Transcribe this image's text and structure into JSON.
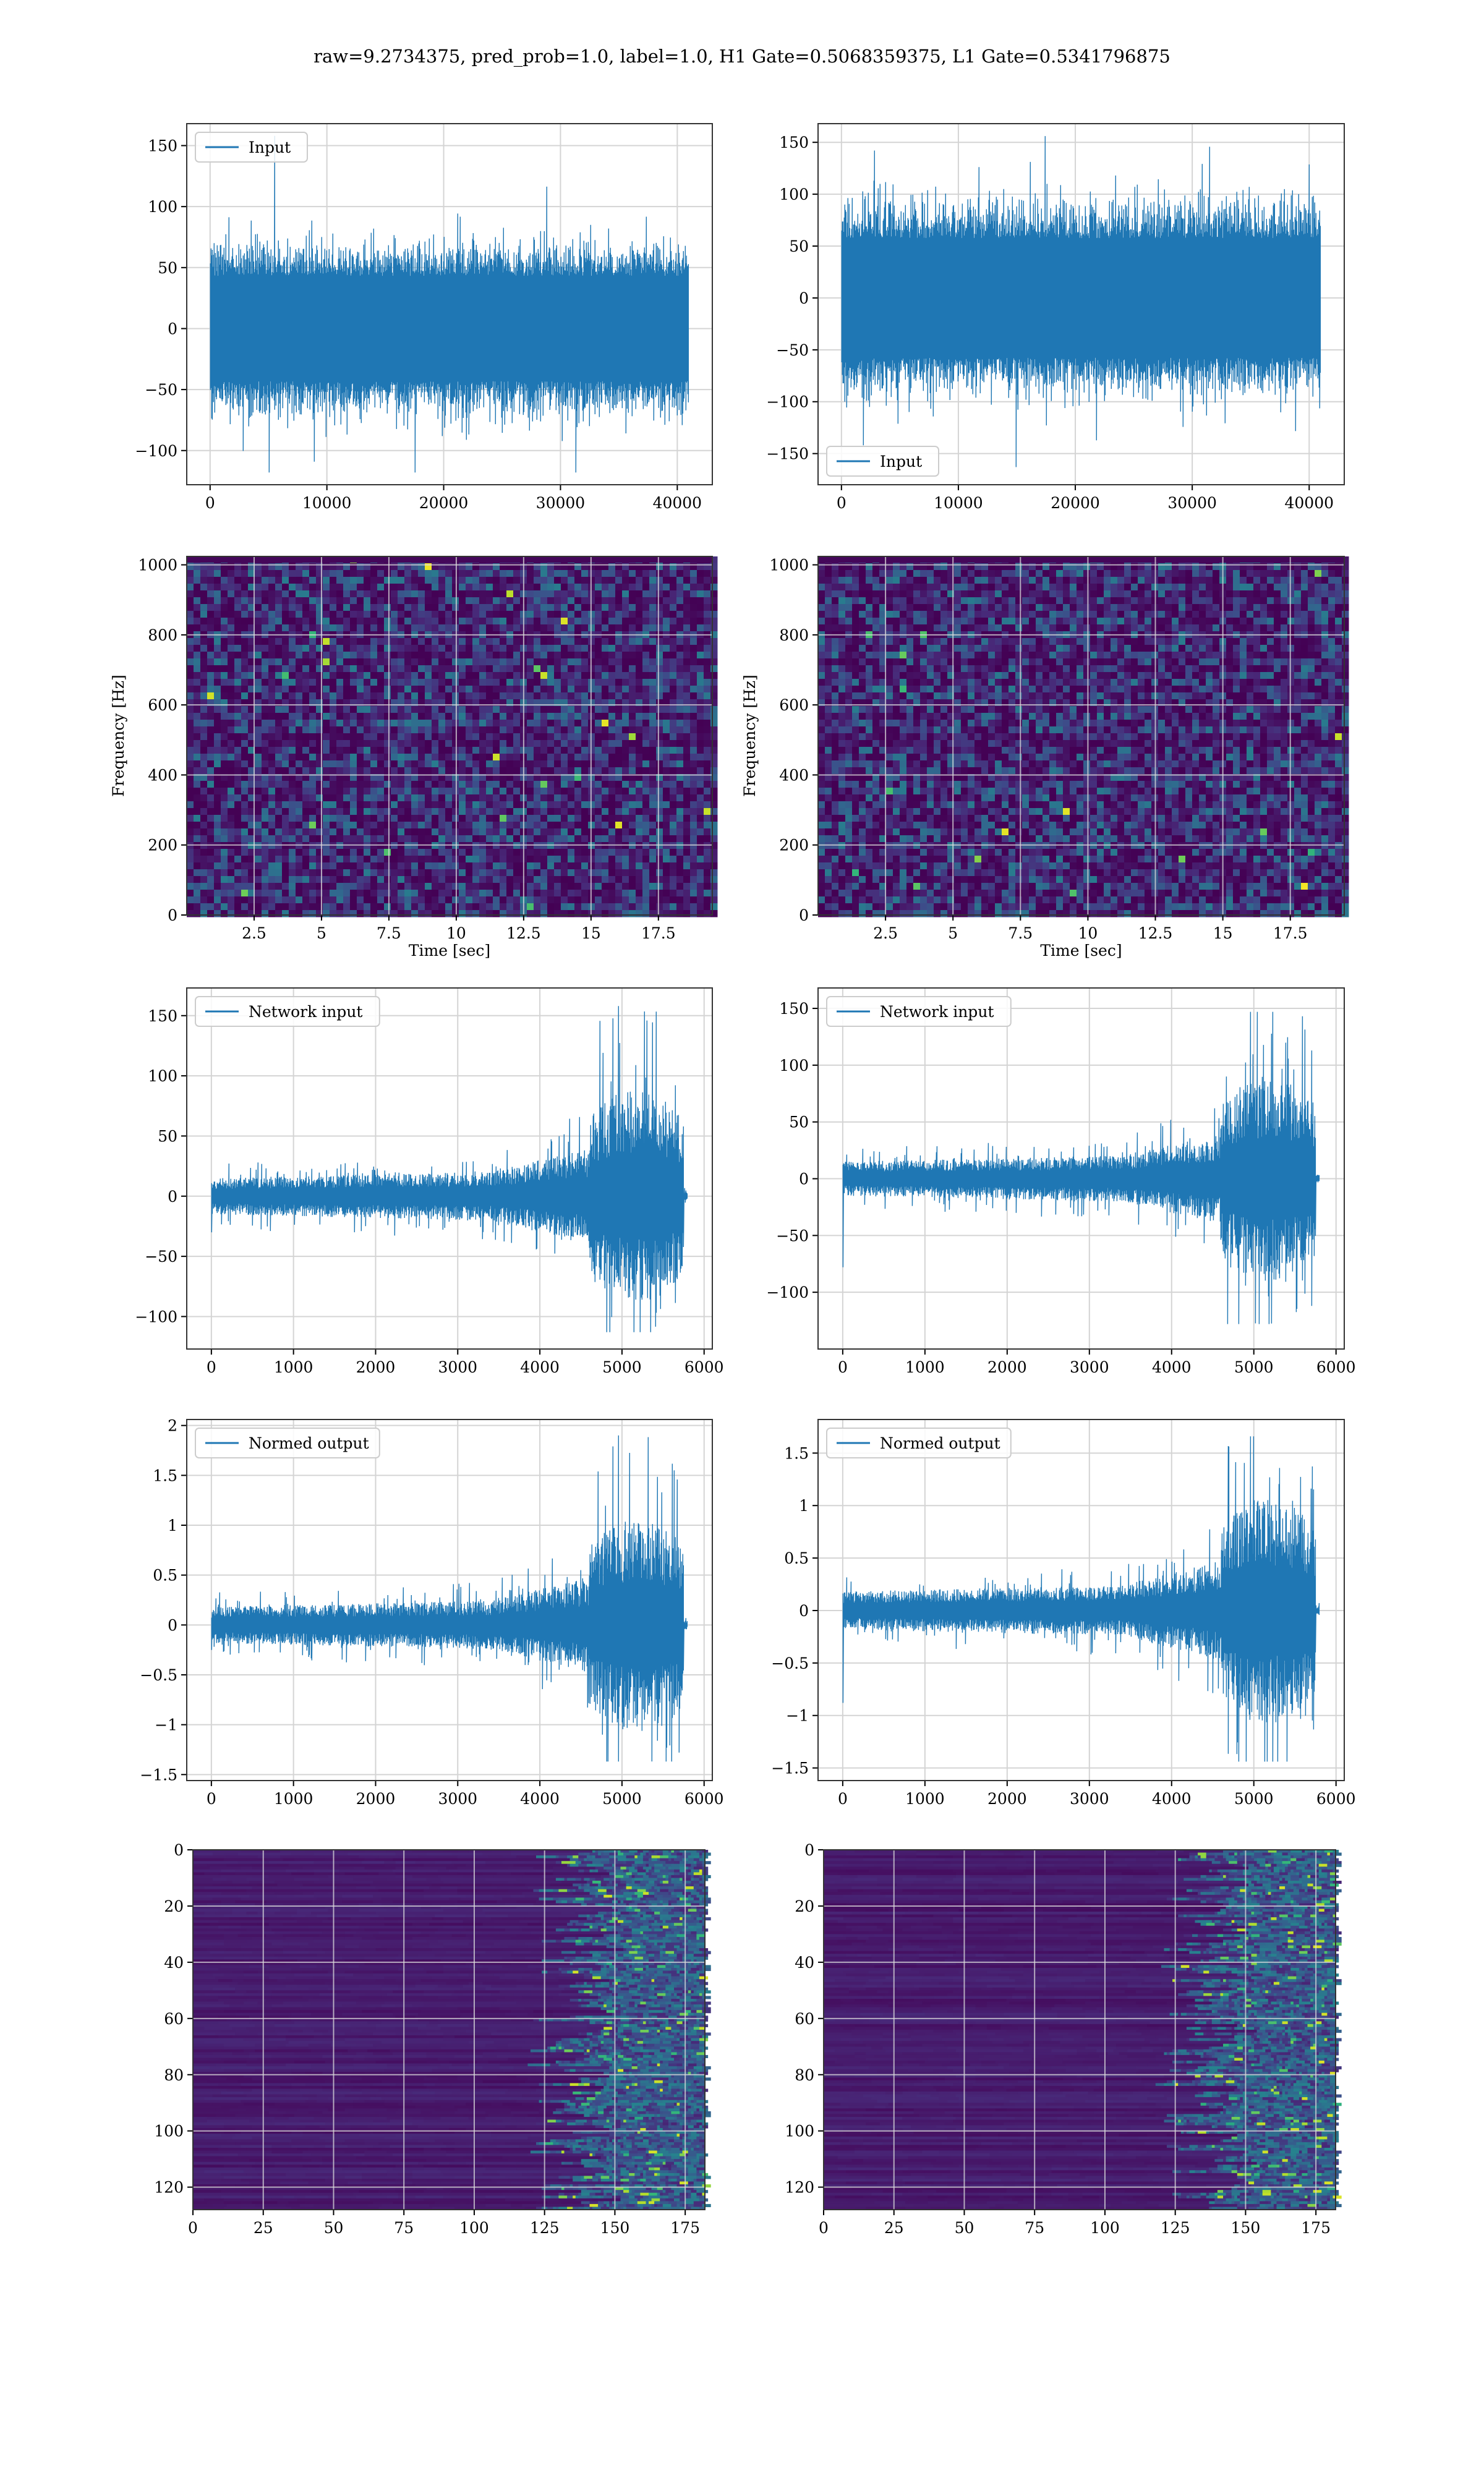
{
  "suptitle": "raw=9.2734375, pred_prob=1.0, label=1.0, H1 Gate=0.5068359375, L1 Gate=0.5341796875",
  "colors": {
    "line": "#1f77b4",
    "grid": "#d4d4d4",
    "viridis_low": "#440154",
    "viridis_high": "#fde725"
  },
  "chart_data": [
    {
      "id": "input-h1",
      "type": "line",
      "legend": "Input",
      "legend_loc": "upper left",
      "xlim": [
        -2000,
        43000
      ],
      "ylim": [
        -128,
        168
      ],
      "xticks": [
        0,
        10000,
        20000,
        30000,
        40000
      ],
      "yticks": [
        -100,
        -50,
        0,
        50,
        100,
        150
      ],
      "signal": {
        "n": 40960,
        "sigma": 27,
        "peak": 158,
        "min": -118
      }
    },
    {
      "id": "input-l1",
      "type": "line",
      "legend": "Input",
      "legend_loc": "lower left",
      "xlim": [
        -2000,
        43000
      ],
      "ylim": [
        -180,
        168
      ],
      "xticks": [
        0,
        10000,
        20000,
        30000,
        40000
      ],
      "yticks": [
        -150,
        -100,
        -50,
        0,
        50,
        100,
        150
      ],
      "signal": {
        "n": 40960,
        "sigma": 36,
        "peak": 156,
        "min": -163
      }
    },
    {
      "id": "spec-h1",
      "type": "heatmap",
      "xlabel": "Time [sec]",
      "ylabel": "Frequency [Hz]",
      "xlim": [
        0,
        19.5
      ],
      "ylim": [
        0,
        1024
      ],
      "xticks": [
        2.5,
        5.0,
        7.5,
        10.0,
        12.5,
        15.0,
        17.5
      ],
      "yticks": [
        0,
        200,
        400,
        600,
        800,
        1000
      ],
      "colormap": "viridis"
    },
    {
      "id": "spec-l1",
      "type": "heatmap",
      "xlabel": "Time [sec]",
      "ylabel": "Frequency [Hz]",
      "xlim": [
        0,
        19.5
      ],
      "ylim": [
        0,
        1024
      ],
      "xticks": [
        2.5,
        5.0,
        7.5,
        10.0,
        12.5,
        15.0,
        17.5
      ],
      "yticks": [
        0,
        200,
        400,
        600,
        800,
        1000
      ],
      "colormap": "viridis"
    },
    {
      "id": "net-h1",
      "type": "line",
      "legend": "Network input",
      "legend_loc": "upper left",
      "xlim": [
        -300,
        6100
      ],
      "ylim": [
        -127,
        173
      ],
      "xticks": [
        0,
        1000,
        2000,
        3000,
        4000,
        5000,
        6000
      ],
      "yticks": [
        -100,
        -50,
        0,
        50,
        100,
        150
      ],
      "signal": {
        "n": 5800,
        "base": 10,
        "peak": 158,
        "min": -113,
        "start": -30
      }
    },
    {
      "id": "net-l1",
      "type": "line",
      "legend": "Network input",
      "legend_loc": "upper left",
      "xlim": [
        -300,
        6100
      ],
      "ylim": [
        -150,
        168
      ],
      "xticks": [
        0,
        1000,
        2000,
        3000,
        4000,
        5000,
        6000
      ],
      "yticks": [
        -100,
        -50,
        0,
        50,
        100,
        150
      ],
      "signal": {
        "n": 5800,
        "base": 10,
        "peak": 147,
        "min": -128,
        "start": -78
      }
    },
    {
      "id": "norm-h1",
      "type": "line",
      "legend": "Normed output",
      "legend_loc": "upper left",
      "xlim": [
        -300,
        6100
      ],
      "ylim": [
        -1.56,
        2.06
      ],
      "xticks": [
        0,
        1000,
        2000,
        3000,
        4000,
        5000,
        6000
      ],
      "yticks": [
        -1.5,
        -1.0,
        -0.5,
        0.0,
        0.5,
        1.0,
        1.5,
        2.0
      ],
      "signal": {
        "n": 5800,
        "base": 0.12,
        "peak": 1.9,
        "min": -1.37,
        "start": -0.25
      }
    },
    {
      "id": "norm-l1",
      "type": "line",
      "legend": "Normed output",
      "legend_loc": "upper left",
      "xlim": [
        -300,
        6100
      ],
      "ylim": [
        -1.62,
        1.82
      ],
      "xticks": [
        0,
        1000,
        2000,
        3000,
        4000,
        5000,
        6000
      ],
      "yticks": [
        -1.5,
        -1.0,
        -0.5,
        0.0,
        0.5,
        1.0,
        1.5
      ],
      "signal": {
        "n": 5800,
        "base": 0.12,
        "peak": 1.66,
        "min": -1.44,
        "start": -0.88
      }
    },
    {
      "id": "feat-h1",
      "type": "heatmap",
      "xlim": [
        0,
        182
      ],
      "ylim": [
        128,
        0
      ],
      "xticks": [
        0,
        25,
        50,
        75,
        100,
        125,
        150,
        175
      ],
      "yticks": [
        0,
        20,
        40,
        60,
        80,
        100,
        120
      ],
      "colormap": "viridis"
    },
    {
      "id": "feat-l1",
      "type": "heatmap",
      "xlim": [
        0,
        182
      ],
      "ylim": [
        128,
        0
      ],
      "xticks": [
        0,
        25,
        50,
        75,
        100,
        125,
        150,
        175
      ],
      "yticks": [
        0,
        20,
        40,
        60,
        80,
        100,
        120
      ],
      "colormap": "viridis"
    }
  ]
}
